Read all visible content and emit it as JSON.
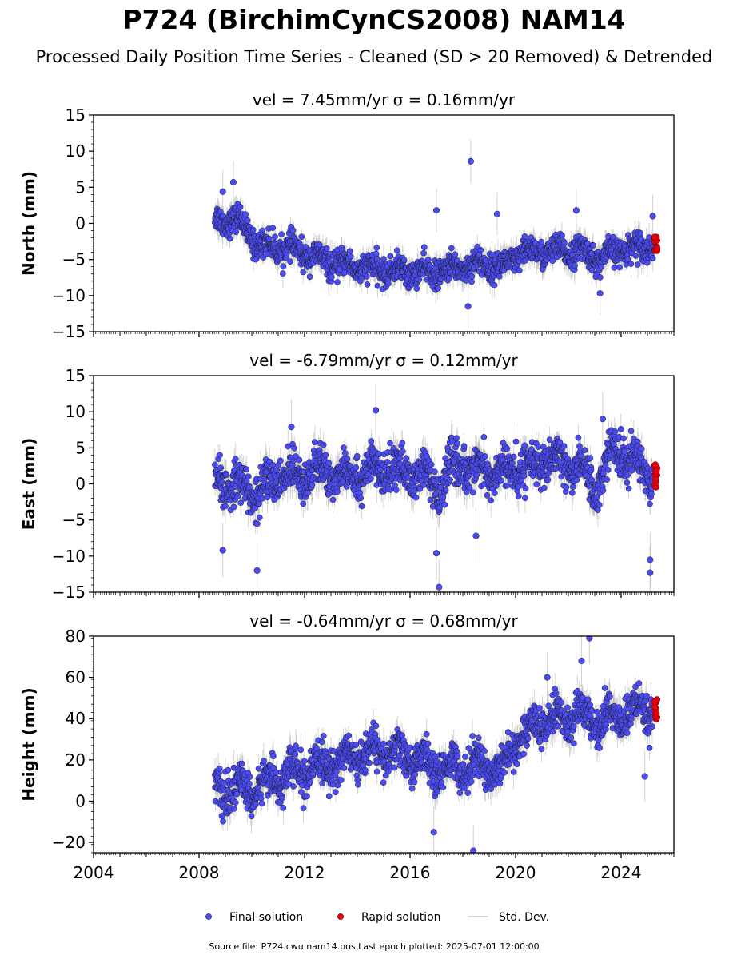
{
  "figure": {
    "title": "P724 (BirchimCynCS2008) NAM14",
    "subtitle": "Processed Daily Position Time Series - Cleaned (SD > 20 Removed) & Detrended",
    "source_text": "Source file: P724.cwu.nam14.pos  Last epoch plotted: 2025-07-01 12:00:00"
  },
  "legend": {
    "placement": "bottom-center",
    "items": [
      {
        "label": "Final solution",
        "color": "#4b4bf5",
        "kind": "dot"
      },
      {
        "label": "Rapid solution",
        "color": "#e8000b",
        "kind": "dot"
      },
      {
        "label": "Std. Dev.",
        "color": "#cccccc",
        "kind": "line"
      }
    ]
  },
  "colors": {
    "final": "#4b4bf5",
    "rapid": "#e8000b",
    "errorbar": "#b4b4b4",
    "marker_edge": "#1a1a1a"
  },
  "chart_data": [
    {
      "type": "scatter",
      "panel": "north",
      "title": "vel = 7.45mm/yr   σ = 0.16mm/yr",
      "ylabel": "North (mm)",
      "xlim": [
        2004,
        2026
      ],
      "ylim": [
        -15,
        15
      ],
      "yticks": [
        -15,
        -10,
        -5,
        0,
        5,
        10,
        15
      ],
      "xticks": [
        2004,
        2008,
        2012,
        2016,
        2020,
        2024
      ],
      "show_xtick_labels": false,
      "grid": false,
      "series": [
        {
          "name": "Final solution",
          "x_range": [
            2008.6,
            2025.2
          ],
          "trend": [
            [
              2008.6,
              0.5
            ],
            [
              2009.5,
              0.5
            ],
            [
              2010.2,
              -3
            ],
            [
              2011.5,
              -3.5
            ],
            [
              2013,
              -5.5
            ],
            [
              2015,
              -6.5
            ],
            [
              2017,
              -6.8
            ],
            [
              2018.5,
              -5.5
            ],
            [
              2019.5,
              -6
            ],
            [
              2020.3,
              -4
            ],
            [
              2022.5,
              -3.8
            ],
            [
              2023.2,
              -5
            ],
            [
              2024,
              -3.5
            ],
            [
              2025.2,
              -3
            ]
          ]
        },
        {
          "name": "Rapid solution",
          "x_range": [
            2025.25,
            2025.5
          ],
          "values_range": [
            -3.8,
            -1.8
          ]
        }
      ],
      "outliers": [
        [
          2018.3,
          8.6
        ],
        [
          2017,
          1.8
        ],
        [
          2019.3,
          1.3
        ],
        [
          2022.3,
          1.8
        ],
        [
          2025.2,
          1.0
        ],
        [
          2008.9,
          4.4
        ],
        [
          2009.3,
          5.7
        ],
        [
          2018.2,
          -11.5
        ],
        [
          2023.2,
          -9.7
        ]
      ]
    },
    {
      "type": "scatter",
      "panel": "east",
      "title": "vel = -6.79mm/yr   σ = 0.12mm/yr",
      "ylabel": "East (mm)",
      "xlim": [
        2004,
        2026
      ],
      "ylim": [
        -15,
        15
      ],
      "yticks": [
        -15,
        -10,
        -5,
        0,
        5,
        10,
        15
      ],
      "xticks": [
        2004,
        2008,
        2012,
        2016,
        2020,
        2024
      ],
      "show_xtick_labels": false,
      "grid": false,
      "series": [
        {
          "name": "Final solution",
          "x_range": [
            2008.6,
            2025.2
          ],
          "trend": [
            [
              2008.6,
              0
            ],
            [
              2009.5,
              0
            ],
            [
              2010.2,
              -1.5
            ],
            [
              2011,
              1
            ],
            [
              2012,
              1.5
            ],
            [
              2014,
              1.5
            ],
            [
              2015.5,
              2
            ],
            [
              2016.5,
              1
            ],
            [
              2017.2,
              -1
            ],
            [
              2017.6,
              3
            ],
            [
              2018.5,
              2
            ],
            [
              2019.5,
              1.5
            ],
            [
              2021,
              3
            ],
            [
              2022.5,
              2.5
            ],
            [
              2023,
              -1
            ],
            [
              2023.7,
              5
            ],
            [
              2024.5,
              3
            ],
            [
              2025.2,
              1.5
            ]
          ]
        },
        {
          "name": "Rapid solution",
          "x_range": [
            2025.25,
            2025.5
          ],
          "values_range": [
            -0.5,
            3.0
          ]
        }
      ],
      "outliers": [
        [
          2014.7,
          10.2
        ],
        [
          2017.1,
          -14.3
        ],
        [
          2010.2,
          -12.0
        ],
        [
          2025.1,
          -12.3
        ],
        [
          2025.1,
          -10.5
        ],
        [
          2008.9,
          -9.2
        ],
        [
          2018.5,
          -7.2
        ],
        [
          2017.0,
          -9.6
        ],
        [
          2011.5,
          7.9
        ],
        [
          2023.3,
          9.0
        ]
      ]
    },
    {
      "type": "scatter",
      "panel": "height",
      "title": "vel = -0.64mm/yr   σ = 0.68mm/yr",
      "ylabel": "Height (mm)",
      "xlim": [
        2004,
        2026
      ],
      "ylim": [
        -25,
        80
      ],
      "yticks": [
        -20,
        0,
        20,
        40,
        60,
        80
      ],
      "xticks": [
        2004,
        2008,
        2012,
        2016,
        2020,
        2024
      ],
      "xtick_labels": [
        "2004",
        "2008",
        "2012",
        "2016",
        "2020",
        "2024"
      ],
      "show_xtick_labels": true,
      "grid": false,
      "series": [
        {
          "name": "Final solution",
          "x_range": [
            2008.6,
            2025.2
          ],
          "trend": [
            [
              2008.6,
              5
            ],
            [
              2010,
              5
            ],
            [
              2011,
              12
            ],
            [
              2012,
              14
            ],
            [
              2013,
              18
            ],
            [
              2014.5,
              24
            ],
            [
              2016,
              22
            ],
            [
              2017,
              15
            ],
            [
              2018.5,
              18
            ],
            [
              2019.5,
              15
            ],
            [
              2020,
              30
            ],
            [
              2021,
              38
            ],
            [
              2022.5,
              42
            ],
            [
              2023.2,
              38
            ],
            [
              2024,
              42
            ],
            [
              2025.2,
              44
            ]
          ]
        },
        {
          "name": "Rapid solution",
          "x_range": [
            2025.25,
            2025.5
          ],
          "values_range": [
            37,
            52
          ]
        }
      ],
      "outliers": [
        [
          2022.8,
          79
        ],
        [
          2018.4,
          -24
        ],
        [
          2016.9,
          -15
        ],
        [
          2024.9,
          12
        ],
        [
          2022.5,
          68
        ],
        [
          2021.2,
          60
        ]
      ]
    }
  ]
}
